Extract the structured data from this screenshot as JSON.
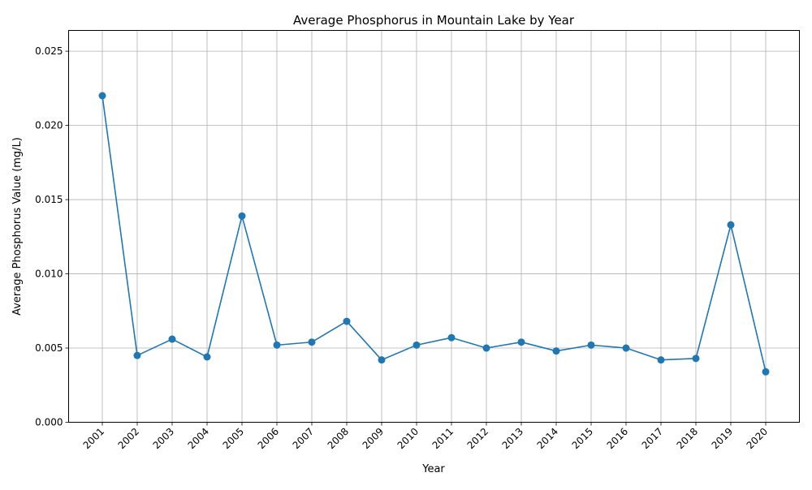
{
  "chart_data": {
    "type": "line",
    "title": "Average Phosphorus in Mountain Lake by Year",
    "xlabel": "Year",
    "ylabel": "Average Phosphorus Value (mg/L)",
    "categories": [
      "2001",
      "2002",
      "2003",
      "2004",
      "2005",
      "2006",
      "2007",
      "2008",
      "2009",
      "2010",
      "2011",
      "2012",
      "2013",
      "2014",
      "2015",
      "2016",
      "2017",
      "2018",
      "2019",
      "2020"
    ],
    "series": [
      {
        "values": [
          0.022,
          0.0045,
          0.0056,
          0.0044,
          0.0139,
          0.0052,
          0.0054,
          0.0068,
          0.0042,
          0.0052,
          0.0057,
          0.005,
          0.0054,
          0.0048,
          0.0052,
          0.005,
          0.0042,
          0.0043,
          0.0133,
          0.0034
        ],
        "color": "#1f77b4",
        "marker": "circle"
      }
    ],
    "ylim": [
      0,
      0.0264
    ],
    "yticks": [
      0.0,
      0.005,
      0.01,
      0.015,
      0.02,
      0.025
    ],
    "ytick_labels": [
      "0.000",
      "0.005",
      "0.010",
      "0.015",
      "0.020",
      "0.025"
    ],
    "grid": true,
    "xtick_rotation": 45
  }
}
